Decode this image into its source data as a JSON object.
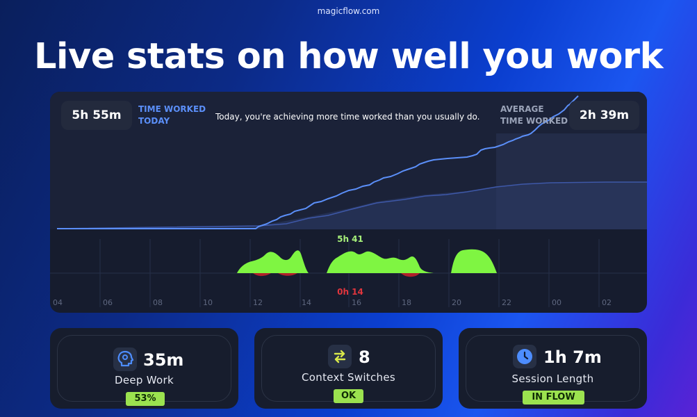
{
  "site": "magicflow.com",
  "headline": "Live stats on how well you work",
  "stats": {
    "time_worked_value": "5h 55m",
    "time_worked_label_1": "TIME WORKED",
    "time_worked_label_2": "TODAY",
    "message": "Today, you're achieving more time worked than you usually do.",
    "average_label_1": "AVERAGE",
    "average_label_2": "TIME WORKED",
    "average_value": "2h 39m"
  },
  "flow": {
    "positive_label": "5h 41",
    "negative_label": "0h 14",
    "hours": [
      "04",
      "06",
      "08",
      "10",
      "12",
      "14",
      "16",
      "18",
      "20",
      "22",
      "00",
      "02"
    ]
  },
  "cards": [
    {
      "value": "35m",
      "caption": "Deep Work",
      "badge": "53%",
      "icon": "head-icon"
    },
    {
      "value": "8",
      "caption": "Context Switches",
      "badge": "OK",
      "icon": "switch-arrows-icon"
    },
    {
      "value": "1h 7m",
      "caption": "Session Length",
      "badge": "IN FLOW",
      "icon": "clock-icon"
    }
  ],
  "colors": {
    "accent_blue": "#5b8ff9",
    "flow_green": "#7ff542",
    "context_red": "#e0353d",
    "badge_green": "#9be24f"
  }
}
